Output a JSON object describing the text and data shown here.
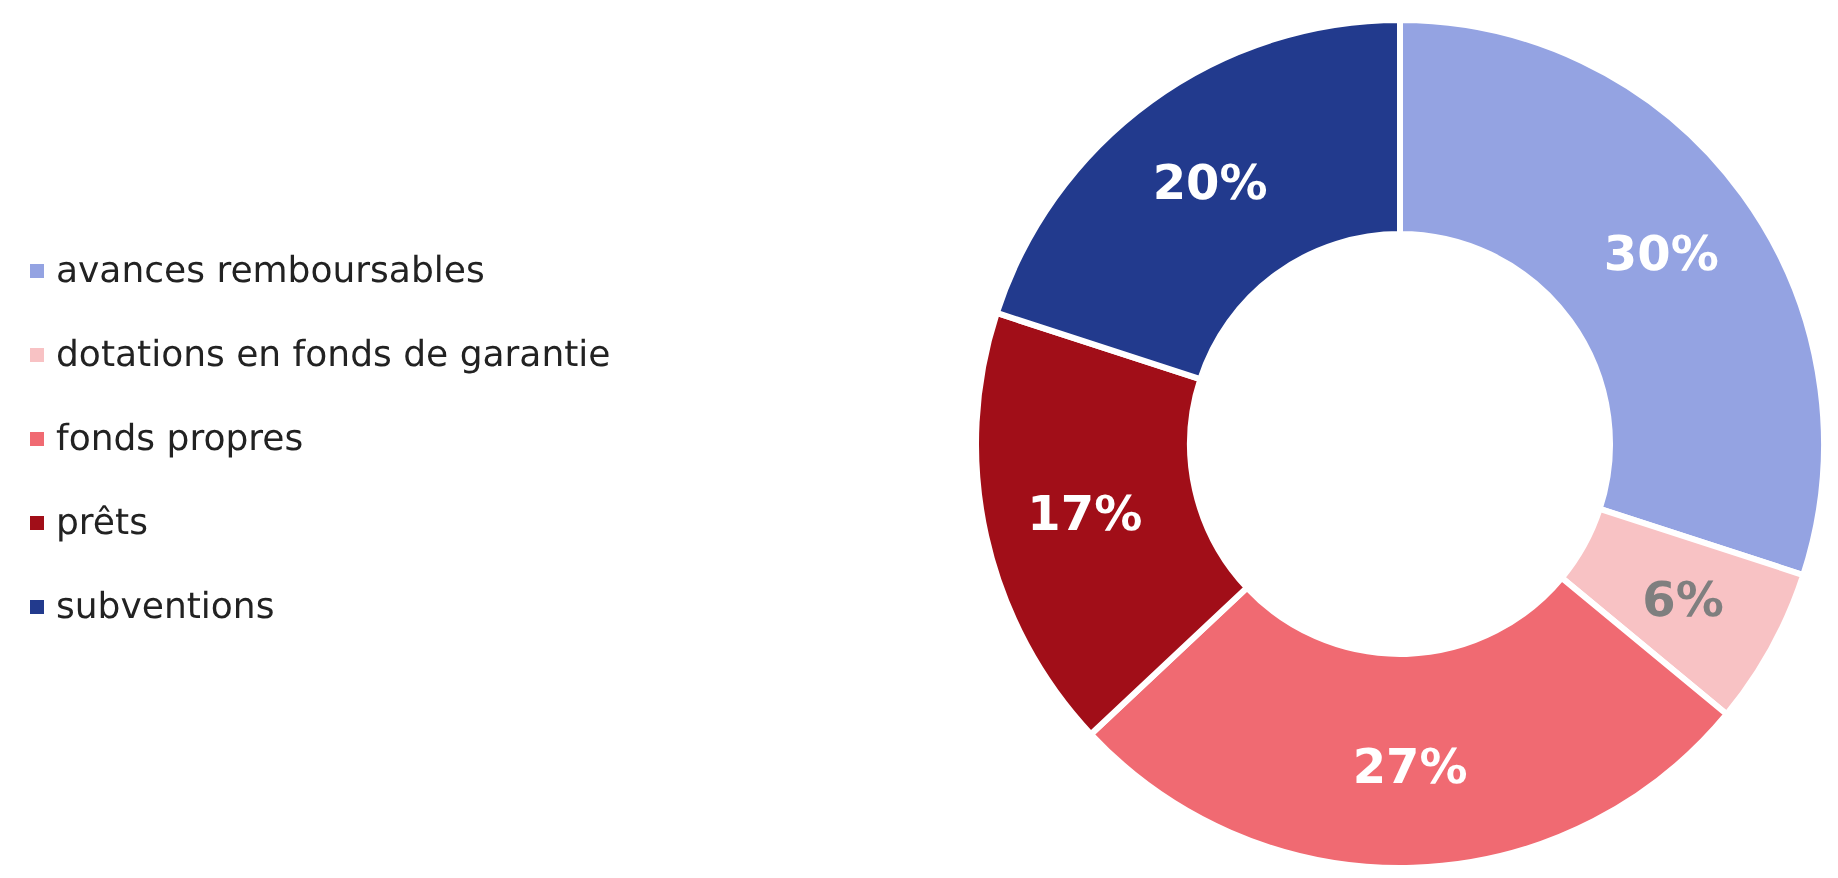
{
  "chart_data": {
    "type": "donut",
    "categories": [
      "avances remboursables",
      "dotations en fonds de garantie",
      "fonds propres",
      "prêts",
      "subventions"
    ],
    "values": [
      30,
      6,
      27,
      17,
      20
    ],
    "value_labels": [
      "30%",
      "6%",
      "27%",
      "17%",
      "20%"
    ],
    "colors": [
      "#94a3e2",
      "#f8c2c4",
      "#f06a72",
      "#a10e18",
      "#223a8d"
    ],
    "legend": "left"
  }
}
